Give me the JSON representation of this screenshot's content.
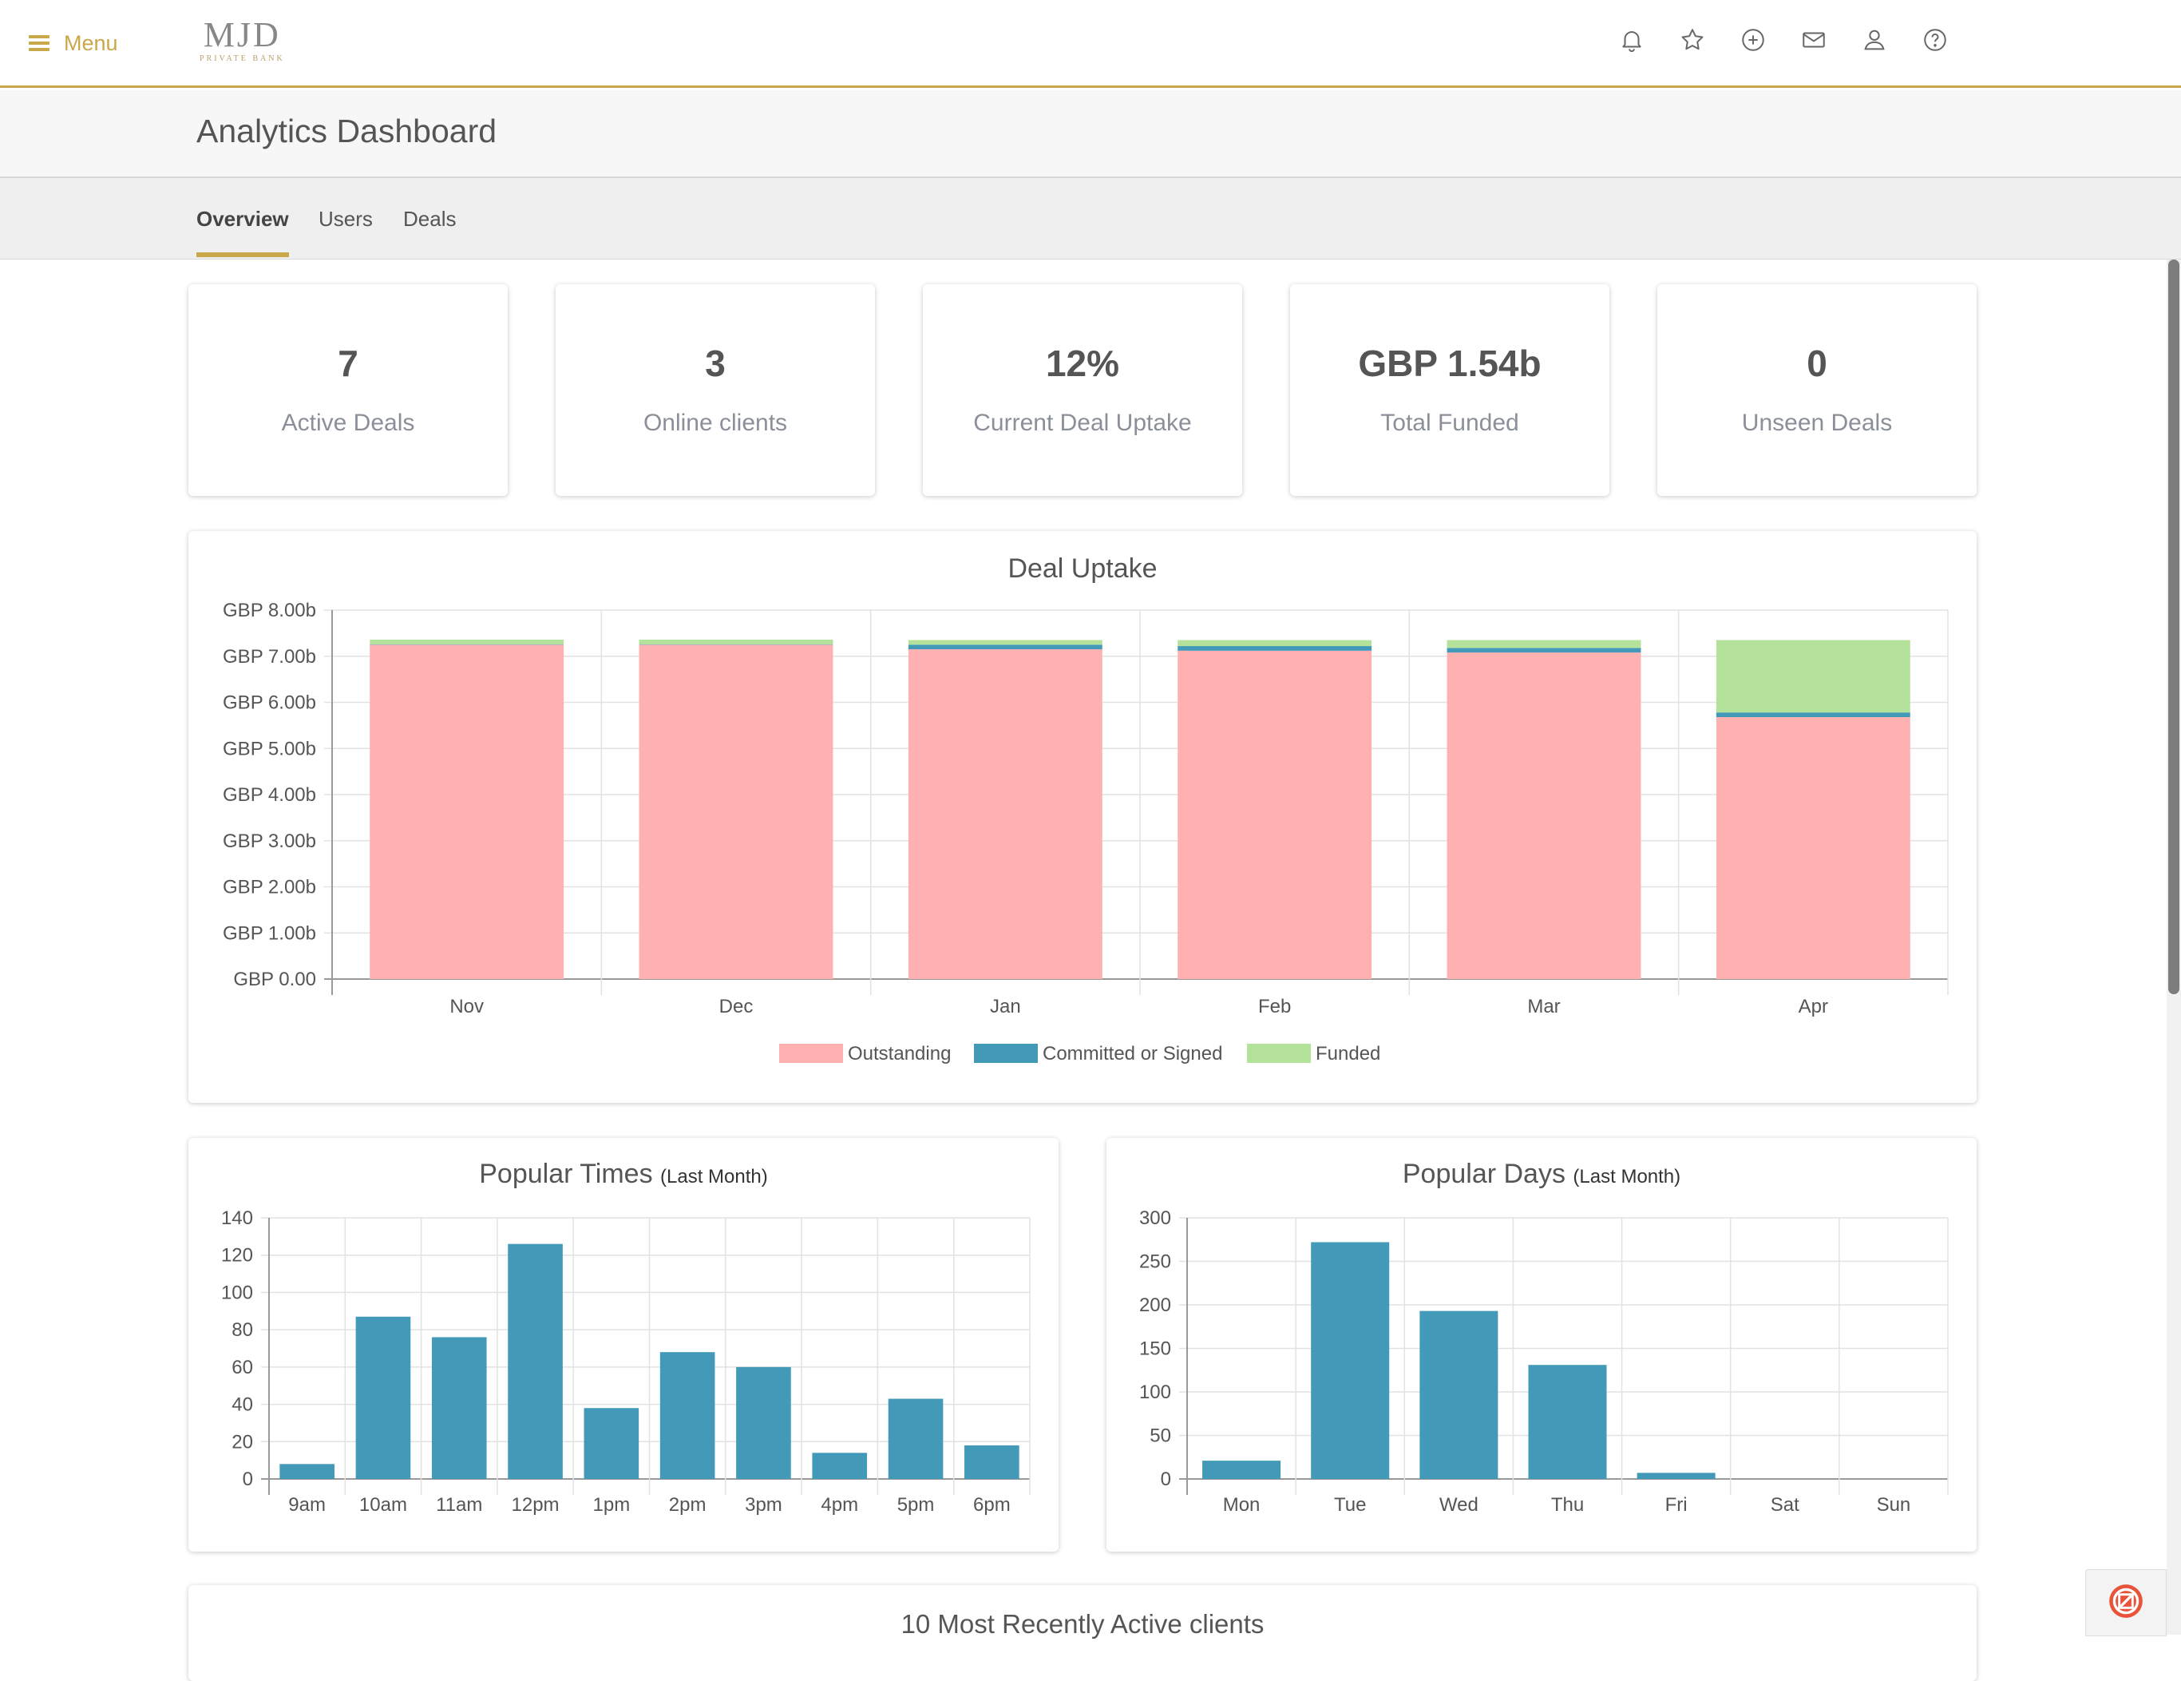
{
  "header": {
    "menu_label": "Menu",
    "logo_main": "MJD",
    "logo_sub": "PRIVATE BANK",
    "icons": [
      "bell-icon",
      "star-icon",
      "plus-circle-icon",
      "mail-icon",
      "user-icon",
      "help-icon"
    ],
    "accent_color": "#c9a84a"
  },
  "page": {
    "title": "Analytics Dashboard"
  },
  "tabs": [
    {
      "label": "Overview",
      "active": true
    },
    {
      "label": "Users",
      "active": false
    },
    {
      "label": "Deals",
      "active": false
    }
  ],
  "stats": [
    {
      "value": "7",
      "label": "Active Deals"
    },
    {
      "value": "3",
      "label": "Online clients"
    },
    {
      "value": "12%",
      "label": "Current Deal Uptake"
    },
    {
      "value": "GBP 1.54b",
      "label": "Total Funded"
    },
    {
      "value": "0",
      "label": "Unseen Deals"
    }
  ],
  "recent_clients": {
    "title": "10 Most Recently Active clients"
  },
  "chart_data": [
    {
      "type": "bar",
      "stacked": true,
      "title": "Deal Uptake",
      "categories": [
        "Nov",
        "Dec",
        "Jan",
        "Feb",
        "Mar",
        "Apr"
      ],
      "series": [
        {
          "name": "Outstanding",
          "color": "#ffb1b1",
          "values": [
            7.25,
            7.25,
            7.15,
            7.12,
            7.08,
            5.68
          ]
        },
        {
          "name": "Committed or Signed",
          "color": "#4399b8",
          "values": [
            0.01,
            0.01,
            0.1,
            0.1,
            0.1,
            0.1
          ]
        },
        {
          "name": "Funded",
          "color": "#b5e29a",
          "values": [
            0.1,
            0.1,
            0.1,
            0.13,
            0.17,
            1.57
          ]
        }
      ],
      "ylim": [
        0,
        8
      ],
      "yticks": [
        "GBP 0.00",
        "GBP 1.00b",
        "GBP 2.00b",
        "GBP 3.00b",
        "GBP 4.00b",
        "GBP 5.00b",
        "GBP 6.00b",
        "GBP 7.00b",
        "GBP 8.00b"
      ],
      "legend": "bottom",
      "grid": true
    },
    {
      "type": "bar",
      "title": "Popular Times",
      "subtitle": "(Last Month)",
      "categories": [
        "9am",
        "10am",
        "11am",
        "12pm",
        "1pm",
        "2pm",
        "3pm",
        "4pm",
        "5pm",
        "6pm"
      ],
      "series": [
        {
          "color": "#4399b8",
          "values": [
            8,
            87,
            76,
            126,
            38,
            68,
            60,
            14,
            43,
            18
          ]
        }
      ],
      "ylim": [
        0,
        140
      ],
      "yticks": [
        "0",
        "20",
        "40",
        "60",
        "80",
        "100",
        "120",
        "140"
      ],
      "grid": true
    },
    {
      "type": "bar",
      "title": "Popular Days",
      "subtitle": "(Last Month)",
      "categories": [
        "Mon",
        "Tue",
        "Wed",
        "Thu",
        "Fri",
        "Sat",
        "Sun"
      ],
      "series": [
        {
          "color": "#4399b8",
          "values": [
            21,
            272,
            193,
            131,
            7,
            0,
            0
          ]
        }
      ],
      "ylim": [
        0,
        300
      ],
      "yticks": [
        "0",
        "50",
        "100",
        "150",
        "200",
        "250",
        "300"
      ],
      "grid": true
    }
  ]
}
